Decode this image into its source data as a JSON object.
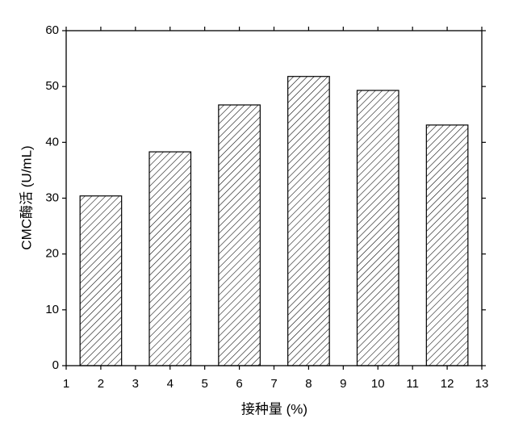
{
  "chart_data": {
    "type": "bar",
    "x": [
      2,
      4,
      6,
      8,
      10,
      12
    ],
    "values": [
      30.4,
      38.3,
      46.7,
      51.8,
      49.3,
      43.1
    ],
    "xlabel": "接种量 (%)",
    "ylabel": "CMC酶活 (U/mL)",
    "xlim": [
      1,
      13
    ],
    "xticks": [
      1,
      2,
      3,
      4,
      5,
      6,
      7,
      8,
      9,
      10,
      11,
      12,
      13
    ],
    "ylim": [
      0,
      60
    ],
    "yticks": [
      0,
      10,
      20,
      30,
      40,
      50,
      60
    ],
    "color": "#000000"
  }
}
